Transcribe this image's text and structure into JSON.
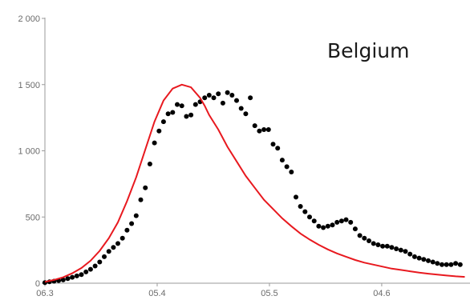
{
  "chart_data": {
    "type": "scatter",
    "title": "Belgium",
    "x_tick_labels": [
      "06.3",
      "05.4",
      "05.5",
      "04.6"
    ],
    "y_tick_labels": [
      "0",
      "500",
      "1 000",
      "1 500",
      "2 000"
    ],
    "y_ticks": [
      0,
      500,
      1000,
      1500,
      2000
    ],
    "ylim": [
      0,
      2000
    ],
    "xlim": [
      0,
      92
    ],
    "x_tick_positions": [
      0,
      24.6,
      49.2,
      73.8
    ],
    "grid": false,
    "colors": {
      "points": "#000000",
      "fit": "#e8191f",
      "axis": "#9a9a9a",
      "text": "#6b6b6b"
    },
    "series": [
      {
        "type": "scatter",
        "x": [
          0,
          1,
          2,
          3,
          4,
          5,
          6,
          7,
          8,
          9,
          10,
          11,
          12,
          13,
          14,
          15,
          16,
          17,
          18,
          19,
          20,
          21,
          22,
          23,
          24,
          25,
          26,
          27,
          28,
          29,
          30,
          31,
          32,
          33,
          34,
          35,
          36,
          37,
          38,
          39,
          40,
          41,
          42,
          43,
          44,
          45,
          46,
          47,
          48,
          49,
          50,
          51,
          52,
          53,
          54,
          55,
          56,
          57,
          58,
          59,
          60,
          61,
          62,
          63,
          64,
          65,
          66,
          67,
          68,
          69,
          70,
          71,
          72,
          73,
          74,
          75,
          76,
          77,
          78,
          79,
          80,
          81,
          82,
          83,
          84,
          85,
          86,
          87,
          88,
          89,
          90,
          91
        ],
        "y": [
          5,
          10,
          15,
          20,
          25,
          35,
          45,
          55,
          65,
          85,
          105,
          130,
          160,
          200,
          240,
          270,
          300,
          340,
          400,
          450,
          510,
          630,
          720,
          900,
          1060,
          1150,
          1220,
          1280,
          1290,
          1350,
          1340,
          1260,
          1270,
          1350,
          1370,
          1400,
          1420,
          1400,
          1430,
          1360,
          1440,
          1420,
          1380,
          1320,
          1280,
          1400,
          1190,
          1150,
          1160,
          1160,
          1050,
          1020,
          930,
          880,
          840,
          650,
          580,
          540,
          500,
          470,
          430,
          420,
          430,
          440,
          460,
          470,
          480,
          460,
          410,
          360,
          340,
          320,
          300,
          290,
          280,
          280,
          270,
          260,
          250,
          240,
          220,
          200,
          190,
          180,
          170,
          160,
          150,
          140,
          140,
          140,
          150,
          140
        ]
      },
      {
        "type": "line",
        "x": [
          0,
          2,
          4,
          6,
          8,
          10,
          12,
          14,
          16,
          18,
          20,
          22,
          24,
          26,
          28,
          30,
          32,
          34,
          35,
          36,
          38,
          40,
          42,
          44,
          46,
          48,
          50,
          52,
          54,
          56,
          58,
          60,
          62,
          64,
          66,
          68,
          70,
          72,
          74,
          76,
          78,
          80,
          82,
          84,
          86,
          88,
          90,
          92
        ],
        "y": [
          10,
          25,
          45,
          75,
          115,
          170,
          245,
          340,
          460,
          620,
          800,
          1010,
          1220,
          1380,
          1470,
          1500,
          1480,
          1400,
          1340,
          1270,
          1160,
          1030,
          920,
          810,
          720,
          630,
          560,
          490,
          430,
          375,
          330,
          290,
          255,
          225,
          200,
          175,
          155,
          140,
          125,
          110,
          100,
          90,
          80,
          72,
          65,
          58,
          52,
          48
        ]
      }
    ]
  }
}
